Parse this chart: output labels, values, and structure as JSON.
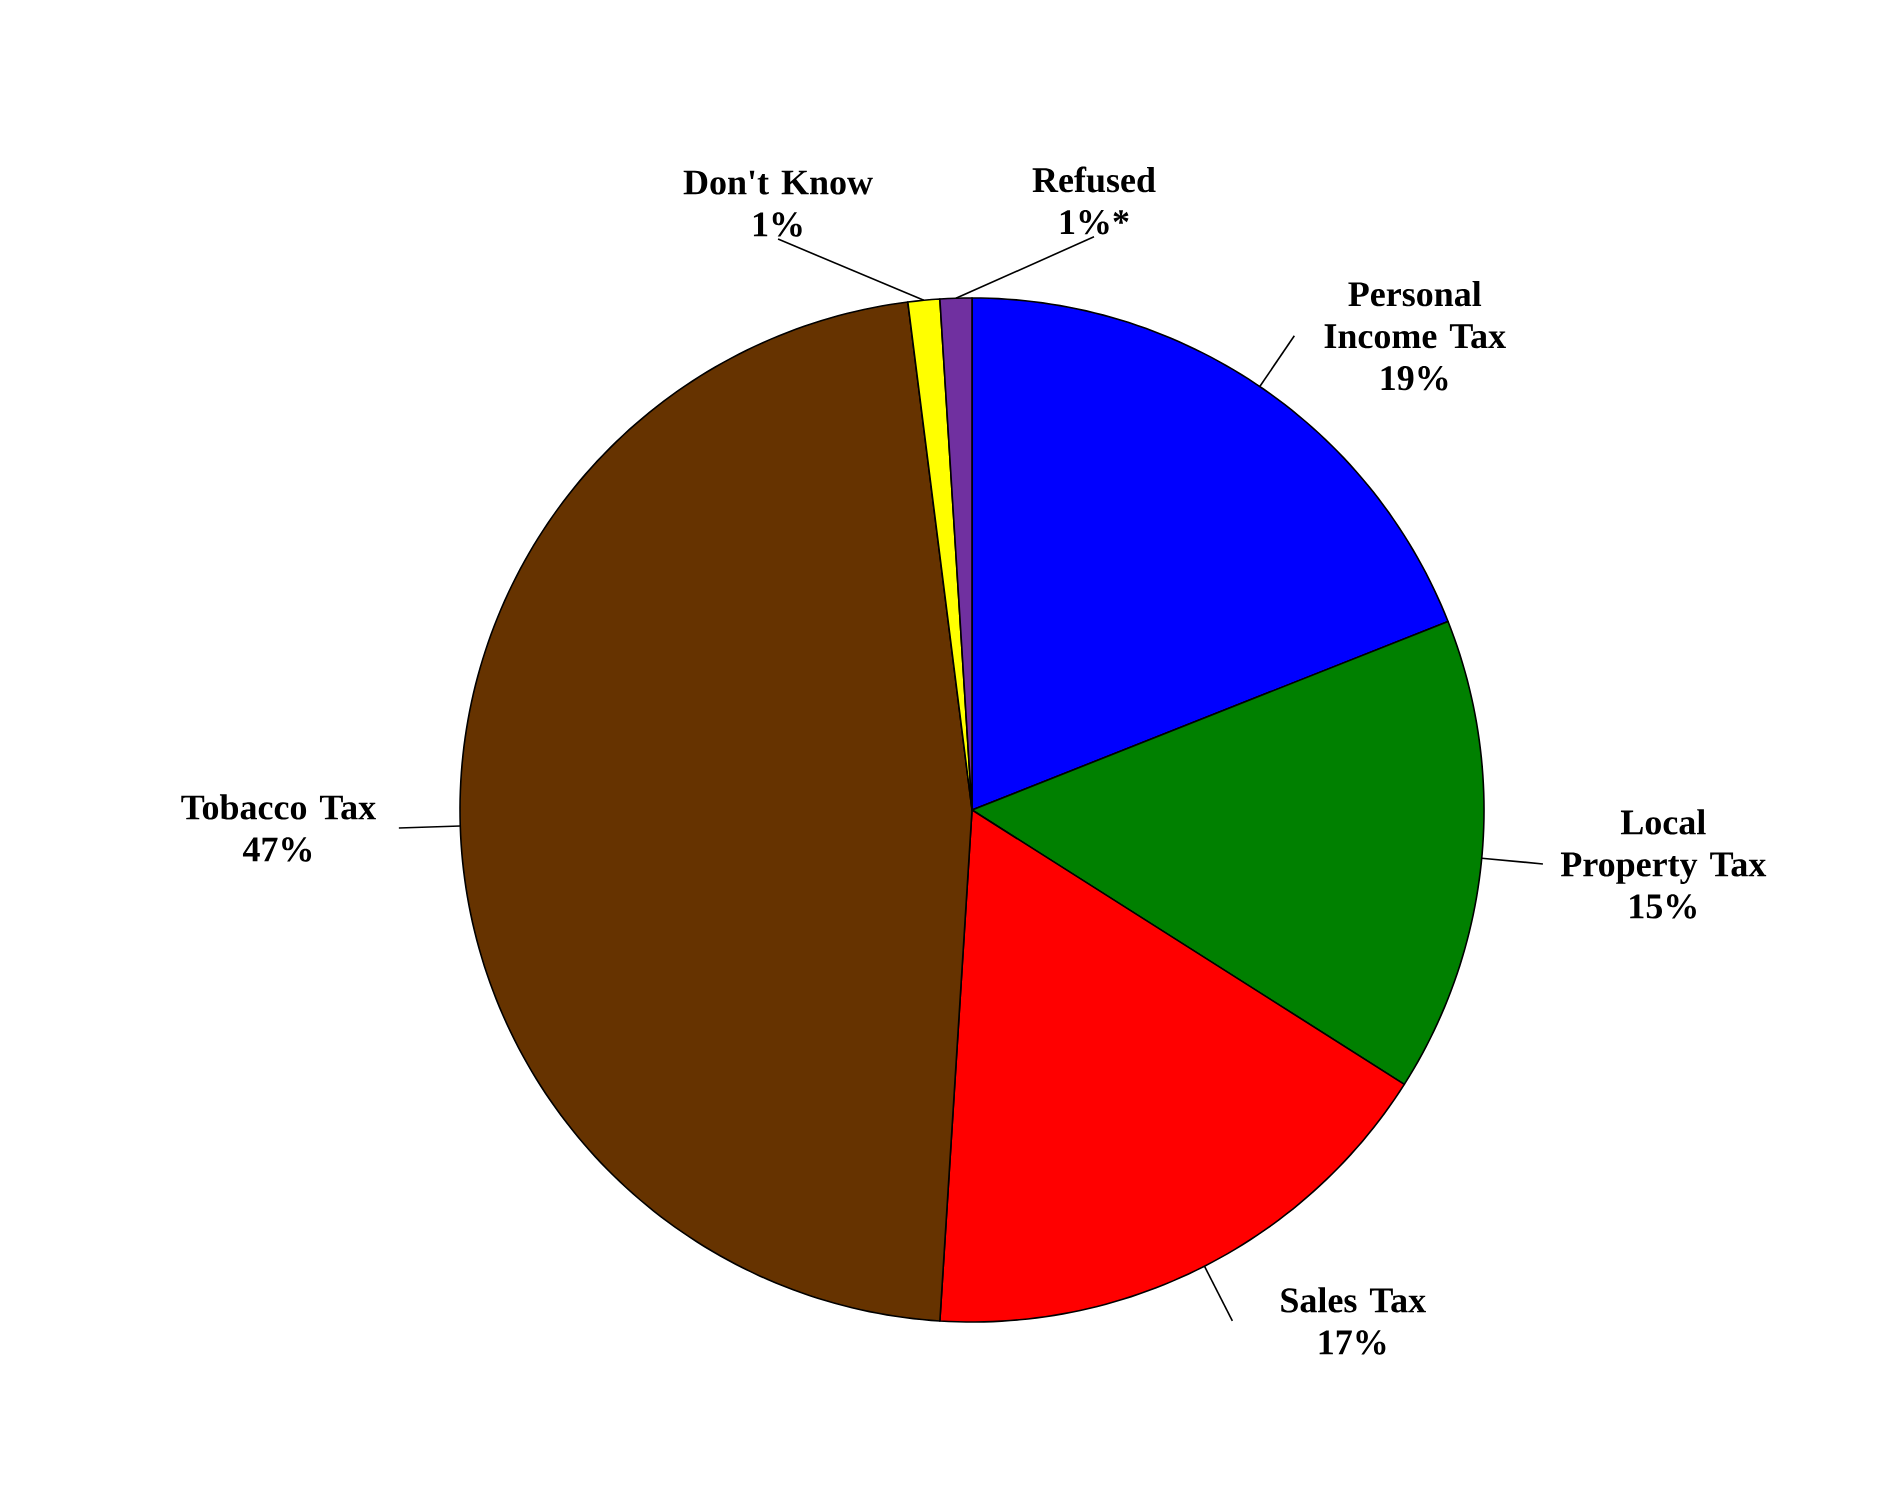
{
  "chart_data": {
    "type": "pie",
    "categories": [
      "Personal Income Tax",
      "Local Property Tax",
      "Sales Tax",
      "Tobacco Tax",
      "Don't Know",
      "Refused"
    ],
    "values": [
      19,
      15,
      17,
      47,
      1,
      1
    ],
    "value_labels": [
      "19%",
      "15%",
      "17%",
      "47%",
      "1%",
      "1%*"
    ],
    "colors": [
      "#0000ff",
      "#008000",
      "#ff0000",
      "#663300",
      "#ffff00",
      "#7030a0"
    ]
  }
}
